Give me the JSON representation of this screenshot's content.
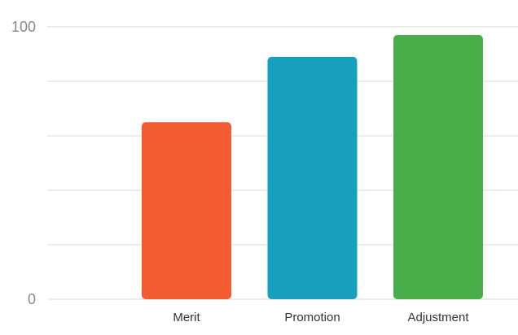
{
  "chart_data": {
    "type": "bar",
    "categories": [
      "Merit",
      "Promotion",
      "Adjustment"
    ],
    "values": [
      65,
      89,
      97
    ],
    "colors": [
      "#f25c33",
      "#16a0bd",
      "#49ad4a"
    ],
    "ylim": [
      0,
      100
    ],
    "yticks": [
      0,
      20,
      40,
      60,
      80,
      100
    ],
    "ytick_labels": [
      "0",
      "",
      "",
      "",
      "",
      "100"
    ],
    "grid": true,
    "title": "",
    "xlabel": "",
    "ylabel": ""
  }
}
